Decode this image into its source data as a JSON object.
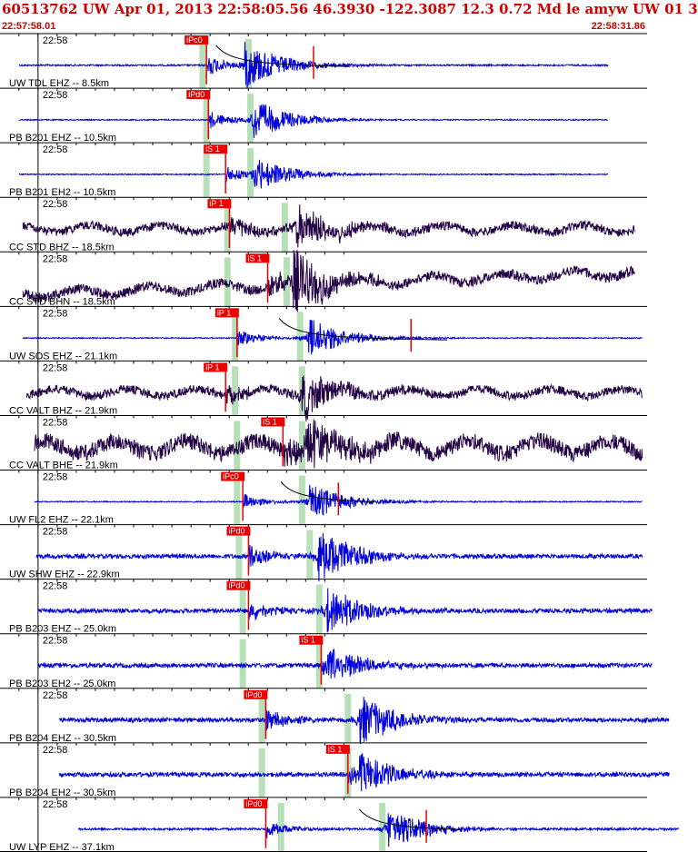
{
  "header": {
    "title": "60513762 UW Apr 01, 2013 22:58:05.56   46.3930 -122.3087 12.3 0.72 Md le amyw UW 01   3",
    "start_time": "22:57:58.01",
    "end_time": "22:58:31.86"
  },
  "chart_data": {
    "type": "line",
    "title": "60513762 UW Apr 01, 2013 22:58:05.56   46.3930 -122.3087 12.3 0.72 Md le amyw UW 01   3",
    "x_range": [
      "22:57:58.01",
      "22:58:31.86"
    ],
    "tick_label": "22:58",
    "colors": {
      "vertical_trace": "#0000dd",
      "horizontal_trace": "#220044",
      "pick": "#ee0000",
      "window": "#b8e0b8",
      "title": "#cc0000"
    },
    "traces": [
      {
        "label": "UW TDL EHZ -- 8.5km",
        "pick": "iPc0",
        "pick_s": 10.8,
        "windows": [
          10.6,
          13.0
        ],
        "s_s": 12.8,
        "trace_start_s": 1.0,
        "trace_end_s": 31.8,
        "amp": 0.45,
        "noise": 0.015,
        "decay_curve": true,
        "coda_mark_s": 16.4,
        "kind": "vertical"
      },
      {
        "label": "PB B201 EHZ -- 10.5km",
        "pick": "iPd0",
        "pick_s": 10.9,
        "windows": [
          10.8,
          13.1
        ],
        "s_s": 13.2,
        "trace_start_s": 1.0,
        "trace_end_s": 31.8,
        "amp": 0.4,
        "noise": 0.01,
        "kind": "vertical"
      },
      {
        "label": "PB B201 EH2 -- 10.5km",
        "pick": "iS 1",
        "pick_s": 11.8,
        "windows": [
          10.8,
          13.1
        ],
        "s_s": 13.2,
        "trace_start_s": 1.0,
        "trace_end_s": 31.8,
        "amp": 0.35,
        "noise": 0.01,
        "kind": "vertical"
      },
      {
        "label": "CC STD BHZ -- 18.5km",
        "pick": "iP 1",
        "pick_s": 12.0,
        "windows": [
          11.9,
          14.9
        ],
        "s_s": 15.5,
        "trace_start_s": 1.2,
        "trace_end_s": 33.2,
        "amp": 0.45,
        "noise": 0.08,
        "kind": "horizontal"
      },
      {
        "label": "CC STD BHN -- 18.5km",
        "pick": "iS 1",
        "pick_s": 14.0,
        "windows": [
          11.9,
          15.0
        ],
        "s_s": 15.3,
        "trace_start_s": 1.2,
        "trace_end_s": 33.2,
        "amp": 0.6,
        "noise": 0.09,
        "kind": "horizontal",
        "drift": true
      },
      {
        "label": "UW SOS EHZ -- 21.1km",
        "pick": "iP 1",
        "pick_s": 12.4,
        "windows": [
          12.3,
          15.7
        ],
        "s_s": 16.1,
        "trace_start_s": 1.2,
        "trace_end_s": 33.6,
        "amp": 0.4,
        "noise": 0.01,
        "decay_curve": true,
        "coda_mark_s": 21.5,
        "kind": "vertical"
      },
      {
        "label": "CC VALT BHZ -- 21.9km",
        "pick": "iP 1",
        "pick_s": 11.8,
        "windows": [
          12.3,
          15.8
        ],
        "s_s": 15.8,
        "trace_start_s": 1.4,
        "trace_end_s": 33.6,
        "amp": 0.45,
        "noise": 0.08,
        "kind": "horizontal"
      },
      {
        "label": "CC VALT BHE -- 21.9km",
        "pick": "iS 1",
        "pick_s": 14.8,
        "windows": [
          12.4,
          15.8
        ],
        "s_s": 16.0,
        "trace_start_s": 1.8,
        "trace_end_s": 33.6,
        "amp": 0.55,
        "noise": 0.15,
        "kind": "horizontal"
      },
      {
        "label": "UW FL2 EHZ -- 22.1km",
        "pick": "iPc0",
        "pick_s": 12.7,
        "windows": [
          12.4,
          15.8
        ],
        "s_s": 16.2,
        "trace_start_s": 1.8,
        "trace_end_s": 33.6,
        "amp": 0.35,
        "noise": 0.01,
        "decay_curve": true,
        "coda_mark_s": 17.7,
        "kind": "vertical"
      },
      {
        "label": "UW SHW EHZ -- 22.9km",
        "pick": "iPd0",
        "pick_s": 13.0,
        "windows": [
          12.5,
          16.2
        ],
        "s_s": 16.6,
        "trace_start_s": 1.9,
        "trace_end_s": 33.6,
        "amp": 0.55,
        "noise": 0.04,
        "kind": "vertical"
      },
      {
        "label": "PB B203 EHZ -- 25.0km",
        "pick": "iPd0",
        "pick_s": 13.0,
        "windows": [
          12.7,
          16.7
        ],
        "s_s": 17.1,
        "trace_start_s": 2.0,
        "trace_end_s": 34.1,
        "amp": 0.45,
        "noise": 0.04,
        "kind": "vertical"
      },
      {
        "label": "PB B203 EH2 -- 25.0km",
        "pick": "iS 1",
        "pick_s": 16.8,
        "windows": [
          12.7,
          16.7
        ],
        "s_s": 17.1,
        "trace_start_s": 2.0,
        "trace_end_s": 34.1,
        "amp": 0.4,
        "noise": 0.04,
        "kind": "vertical"
      },
      {
        "label": "PB B204 EHZ -- 30.5km",
        "pick": "iPd0",
        "pick_s": 13.9,
        "windows": [
          13.7,
          18.2
        ],
        "s_s": 18.8,
        "trace_start_s": 3.1,
        "trace_end_s": 35.0,
        "amp": 0.5,
        "noise": 0.04,
        "kind": "vertical"
      },
      {
        "label": "PB B204 EH2 -- 30.5km",
        "pick": "iS 1",
        "pick_s": 18.2,
        "windows": [
          13.7,
          18.2
        ],
        "s_s": 18.8,
        "trace_start_s": 3.1,
        "trace_end_s": 35.0,
        "amp": 0.4,
        "noise": 0.04,
        "kind": "vertical"
      },
      {
        "label": "UW LYP EHZ -- 37.1km",
        "pick": "iPd0",
        "pick_s": 13.9,
        "windows": [
          14.7,
          20.0
        ],
        "s_s": 20.3,
        "trace_start_s": 4.1,
        "trace_end_s": 35.5,
        "amp": 0.4,
        "noise": 0.02,
        "decay_curve": true,
        "coda_mark_s": 22.3,
        "kind": "vertical"
      }
    ]
  }
}
